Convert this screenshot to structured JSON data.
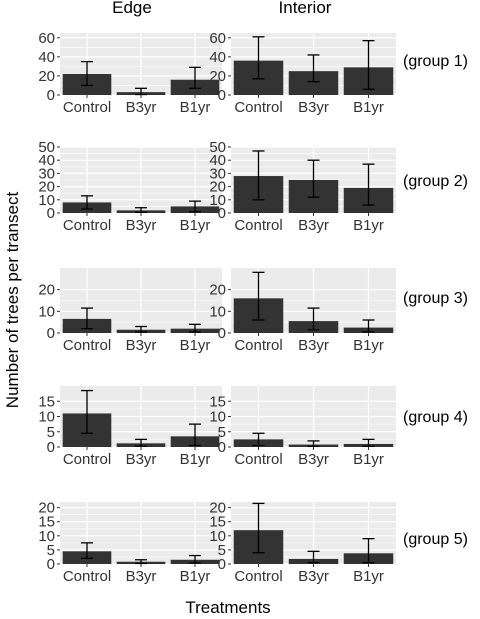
{
  "chart_data": {
    "type": "bar",
    "columns": [
      "Edge",
      "Interior"
    ],
    "rows": [
      "(group 1)",
      "(group 2)",
      "(group 3)",
      "(group 4)",
      "(group 5)"
    ],
    "categories": [
      "Control",
      "B3yr",
      "B1yr"
    ],
    "ylabel": "Number of trees per transect",
    "xlabel": "Treatments",
    "grid": true,
    "panels": [
      {
        "row": 0,
        "col": 0,
        "ylim": [
          0,
          65
        ],
        "yticks": [
          0,
          20,
          40,
          60
        ],
        "values": [
          22,
          3,
          16
        ],
        "err_low": [
          10,
          0.5,
          7
        ],
        "err_high": [
          35,
          7,
          29
        ]
      },
      {
        "row": 0,
        "col": 1,
        "ylim": [
          0,
          65
        ],
        "yticks": [
          0,
          20,
          40,
          60
        ],
        "values": [
          36,
          25,
          29
        ],
        "err_low": [
          17,
          14,
          6
        ],
        "err_high": [
          61,
          42,
          57
        ]
      },
      {
        "row": 1,
        "col": 0,
        "ylim": [
          0,
          50
        ],
        "yticks": [
          0,
          10,
          20,
          30,
          40,
          50
        ],
        "values": [
          8,
          2,
          5
        ],
        "err_low": [
          3,
          0.5,
          1
        ],
        "err_high": [
          13,
          4,
          9
        ]
      },
      {
        "row": 1,
        "col": 1,
        "ylim": [
          0,
          50
        ],
        "yticks": [
          0,
          10,
          20,
          30,
          40,
          50
        ],
        "values": [
          28,
          25,
          19
        ],
        "err_low": [
          10,
          12,
          6
        ],
        "err_high": [
          47,
          40,
          37
        ]
      },
      {
        "row": 2,
        "col": 0,
        "ylim": [
          0,
          30
        ],
        "yticks": [
          0,
          10,
          20
        ],
        "values": [
          6.5,
          1.5,
          2
        ],
        "err_low": [
          2,
          0.5,
          0.5
        ],
        "err_high": [
          11.5,
          3,
          4
        ]
      },
      {
        "row": 2,
        "col": 1,
        "ylim": [
          0,
          30
        ],
        "yticks": [
          0,
          10,
          20
        ],
        "values": [
          16,
          5.5,
          2.5
        ],
        "err_low": [
          6,
          1.5,
          0.5
        ],
        "err_high": [
          28,
          11.5,
          6
        ]
      },
      {
        "row": 3,
        "col": 0,
        "ylim": [
          0,
          20
        ],
        "yticks": [
          0,
          5,
          10,
          15
        ],
        "values": [
          11,
          1.2,
          3.5
        ],
        "err_low": [
          4.5,
          0.3,
          0.5
        ],
        "err_high": [
          18.5,
          2.5,
          7.5
        ]
      },
      {
        "row": 3,
        "col": 1,
        "ylim": [
          0,
          20
        ],
        "yticks": [
          0,
          5,
          10,
          15
        ],
        "values": [
          2.5,
          0.8,
          1
        ],
        "err_low": [
          0.5,
          0.2,
          0.2
        ],
        "err_high": [
          4.5,
          2,
          2.5
        ]
      },
      {
        "row": 4,
        "col": 0,
        "ylim": [
          0,
          22
        ],
        "yticks": [
          0,
          5,
          10,
          15,
          20
        ],
        "values": [
          4.5,
          0.8,
          1.5
        ],
        "err_low": [
          2,
          0.2,
          0.4
        ],
        "err_high": [
          7.5,
          1.5,
          3
        ]
      },
      {
        "row": 4,
        "col": 1,
        "ylim": [
          0,
          22
        ],
        "yticks": [
          0,
          5,
          10,
          15,
          20
        ],
        "values": [
          12,
          1.8,
          3.8
        ],
        "err_low": [
          4,
          0.5,
          0.5
        ],
        "err_high": [
          21.5,
          4.5,
          9
        ]
      }
    ]
  }
}
